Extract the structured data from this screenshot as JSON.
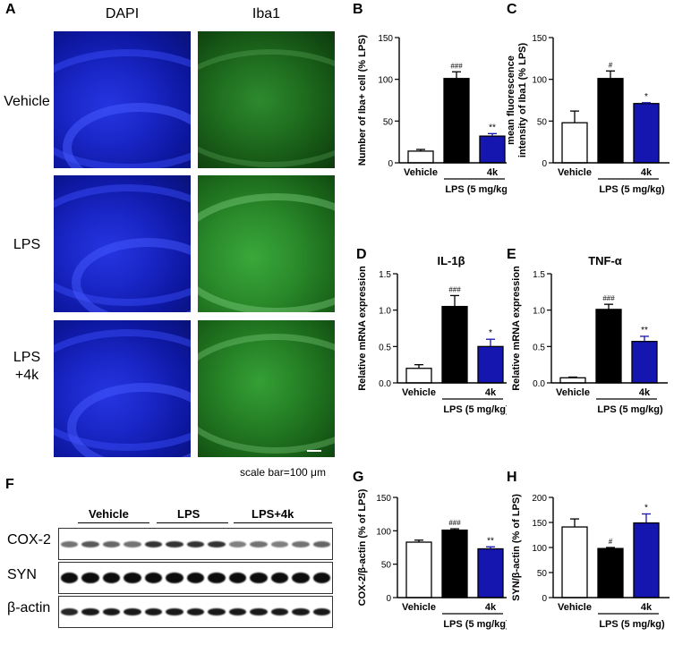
{
  "panel_letters": {
    "A": "A",
    "B": "B",
    "C": "C",
    "D": "D",
    "E": "E",
    "F": "F",
    "G": "G",
    "H": "H"
  },
  "micrographs": {
    "col_headers": [
      "DAPI",
      "Iba1"
    ],
    "rows": [
      {
        "label_line1": "Vehicle",
        "label_line2": ""
      },
      {
        "label_line1": "LPS",
        "label_line2": ""
      },
      {
        "label_line1": "LPS",
        "label_line2": "+4k"
      }
    ],
    "scale_bar": "scale bar=100 μm"
  },
  "western_blot": {
    "groups": [
      "Vehicle",
      "LPS",
      "LPS+4k"
    ],
    "bands": [
      "COX-2",
      "SYN",
      "β-actin"
    ]
  },
  "colors": {
    "vehicle": "#ffffff",
    "lps": "#000000",
    "k4": "#1515b0"
  },
  "chart_data": [
    {
      "panel": "B",
      "type": "bar",
      "ylabel": "Number of Iba+ cell (% LPS)",
      "ylim": [
        0,
        150
      ],
      "yticks": [
        0,
        50,
        100,
        150
      ],
      "categories": [
        "Vehicle",
        "LPS",
        "4k"
      ],
      "x_tick_labels": [
        "Vehicle",
        "",
        "4k"
      ],
      "group_label": "LPS (5 mg/kg)",
      "values": [
        14,
        101,
        32
      ],
      "errors": [
        2,
        8,
        3
      ],
      "significance": [
        "",
        "###",
        "**"
      ]
    },
    {
      "panel": "C",
      "type": "bar",
      "ylabel": "mean fluorescence intensity of Iba1 (% LPS)",
      "ylabel_lines": [
        "mean fluorescence",
        "intensity of Iba1 (% LPS)"
      ],
      "ylim": [
        0,
        150
      ],
      "yticks": [
        0,
        50,
        100,
        150
      ],
      "categories": [
        "Vehicle",
        "LPS",
        "4k"
      ],
      "x_tick_labels": [
        "Vehicle",
        "",
        "4k"
      ],
      "group_label": "LPS (5 mg/kg)",
      "values": [
        48,
        101,
        71
      ],
      "errors": [
        14,
        9,
        1
      ],
      "significance": [
        "",
        "#",
        "*"
      ]
    },
    {
      "panel": "D",
      "type": "bar",
      "title": "IL-1β",
      "ylabel": "Relative mRNA expression",
      "ylim": [
        0,
        1.5
      ],
      "yticks": [
        0.0,
        0.5,
        1.0,
        1.5
      ],
      "categories": [
        "Vehicle",
        "LPS",
        "4k"
      ],
      "x_tick_labels": [
        "Vehicle",
        "",
        "4k"
      ],
      "group_label": "LPS (5 mg/kg)",
      "values": [
        0.2,
        1.05,
        0.5
      ],
      "errors": [
        0.05,
        0.15,
        0.1
      ],
      "significance": [
        "",
        "###",
        "*"
      ]
    },
    {
      "panel": "E",
      "type": "bar",
      "title": "TNF-α",
      "ylabel": "Relative mRNA expression",
      "ylim": [
        0,
        1.5
      ],
      "yticks": [
        0.0,
        0.5,
        1.0,
        1.5
      ],
      "categories": [
        "Vehicle",
        "LPS",
        "4k"
      ],
      "x_tick_labels": [
        "Vehicle",
        "",
        "4k"
      ],
      "group_label": "LPS (5 mg/kg)",
      "values": [
        0.07,
        1.01,
        0.57
      ],
      "errors": [
        0.01,
        0.07,
        0.07
      ],
      "significance": [
        "",
        "###",
        "**"
      ]
    },
    {
      "panel": "G",
      "type": "bar",
      "ylabel": "COX-2/β-actin (% of LPS)",
      "ylim": [
        0,
        150
      ],
      "yticks": [
        0,
        50,
        100,
        150
      ],
      "categories": [
        "Vehicle",
        "LPS",
        "4k"
      ],
      "x_tick_labels": [
        "Vehicle",
        "",
        "4k"
      ],
      "group_label": "LPS (5 mg/kg)",
      "values": [
        83,
        101,
        73
      ],
      "errors": [
        3,
        2,
        3
      ],
      "significance": [
        "",
        "###",
        "**"
      ]
    },
    {
      "panel": "H",
      "type": "bar",
      "ylabel": "SYN/β-actin (% of LPS)",
      "ylim": [
        0,
        200
      ],
      "yticks": [
        0,
        50,
        100,
        150,
        200
      ],
      "categories": [
        "Vehicle",
        "LPS",
        "4k"
      ],
      "x_tick_labels": [
        "Vehicle",
        "",
        "4k"
      ],
      "group_label": "LPS (5 mg/kg)",
      "values": [
        141,
        98,
        149
      ],
      "errors": [
        16,
        2,
        18
      ],
      "significance": [
        "",
        "#",
        "*"
      ]
    }
  ]
}
